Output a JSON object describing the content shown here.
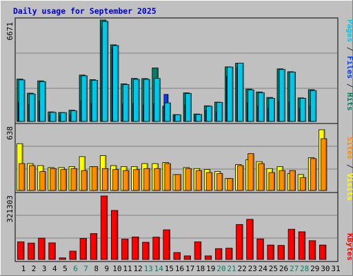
{
  "chart_data": [
    {
      "type": "bar",
      "title": "Daily usage for September 2025",
      "ylabel_parts": [
        {
          "text": "Pages",
          "color": "#00c8e8"
        },
        {
          "text": " / ",
          "color": "#333333"
        },
        {
          "text": "Files",
          "color": "#0040ff"
        },
        {
          "text": " / ",
          "color": "#333333"
        },
        {
          "text": "Hits",
          "color": "#008060"
        }
      ],
      "ymax_label": "6671",
      "ylim": [
        0,
        6671
      ],
      "categories": [
        "1",
        "2",
        "3",
        "4",
        "5",
        "6",
        "7",
        "8",
        "9",
        "10",
        "11",
        "12",
        "13",
        "14",
        "15",
        "16",
        "17",
        "18",
        "19",
        "20",
        "21",
        "22",
        "23",
        "24",
        "25",
        "26",
        "27",
        "28",
        "29",
        "30",
        "31"
      ],
      "weekend_days": [
        "6",
        "7",
        "13",
        "14",
        "20",
        "21",
        "27",
        "28"
      ],
      "series": [
        {
          "name": "Hits",
          "color": "#00806a",
          "values": [
            2790,
            1860,
            2670,
            630,
            590,
            740,
            3050,
            2750,
            6671,
            5040,
            2470,
            2830,
            2820,
            3520,
            1000,
            450,
            1880,
            490,
            1030,
            1270,
            3590,
            3830,
            2130,
            1940,
            1580,
            3460,
            3270,
            1550,
            2090,
            0,
            0
          ]
        },
        {
          "name": "Files",
          "color": "#0040ff",
          "values": [
            1260,
            1110,
            1340,
            420,
            370,
            440,
            1360,
            1170,
            6160,
            4860,
            1160,
            1190,
            1080,
            1180,
            1780,
            420,
            1080,
            330,
            730,
            640,
            2980,
            3560,
            1220,
            1020,
            870,
            1340,
            1290,
            860,
            1040,
            0,
            0
          ]
        },
        {
          "name": "Pages",
          "color": "#00c8e8",
          "values": [
            2730,
            1810,
            2620,
            600,
            580,
            700,
            3000,
            2710,
            6580,
            4990,
            2430,
            2770,
            2770,
            2830,
            1220,
            440,
            1840,
            460,
            1000,
            1250,
            3580,
            3830,
            2080,
            1890,
            1520,
            3420,
            3240,
            1520,
            2030,
            0,
            0
          ]
        }
      ]
    },
    {
      "type": "bar",
      "ylabel_parts": [
        {
          "text": "Sites",
          "color": "#ff8c00"
        },
        {
          "text": " / ",
          "color": "#333333"
        },
        {
          "text": "Visits",
          "color": "#ffff00"
        }
      ],
      "ymax_label": "638",
      "ylim": [
        0,
        638
      ],
      "categories": [
        "1",
        "2",
        "3",
        "4",
        "5",
        "6",
        "7",
        "8",
        "9",
        "10",
        "11",
        "12",
        "13",
        "14",
        "15",
        "16",
        "17",
        "18",
        "19",
        "20",
        "21",
        "22",
        "23",
        "24",
        "25",
        "26",
        "27",
        "28",
        "29",
        "30",
        "31"
      ],
      "series": [
        {
          "name": "Visits",
          "color": "#ffff00",
          "values": [
            470,
            270,
            250,
            230,
            230,
            240,
            340,
            240,
            350,
            250,
            240,
            240,
            270,
            270,
            280,
            160,
            230,
            220,
            210,
            190,
            120,
            260,
            310,
            290,
            220,
            240,
            170,
            160,
            330,
            610,
            0
          ]
        },
        {
          "name": "Sites",
          "color": "#ff8c00",
          "values": [
            270,
            250,
            190,
            220,
            210,
            220,
            200,
            240,
            220,
            210,
            200,
            210,
            220,
            220,
            270,
            160,
            220,
            200,
            180,
            170,
            120,
            250,
            370,
            270,
            180,
            200,
            200,
            130,
            320,
            520,
            0
          ]
        }
      ]
    },
    {
      "type": "bar",
      "ylabel_parts": [
        {
          "text": "KBytes",
          "color": "#ff0000"
        }
      ],
      "ymax_label": "321303",
      "ylim": [
        0,
        321303
      ],
      "categories": [
        "1",
        "2",
        "3",
        "4",
        "5",
        "6",
        "7",
        "8",
        "9",
        "10",
        "11",
        "12",
        "13",
        "14",
        "15",
        "16",
        "17",
        "18",
        "19",
        "20",
        "21",
        "22",
        "23",
        "24",
        "25",
        "26",
        "27",
        "28",
        "29",
        "30",
        "31"
      ],
      "series": [
        {
          "name": "KBytes",
          "color": "#ff0000",
          "values": [
            89000,
            83000,
            108000,
            84000,
            8000,
            42000,
            106000,
            131000,
            321303,
            248000,
            103000,
            114000,
            87000,
            113000,
            150000,
            35000,
            18000,
            89000,
            18000,
            55000,
            57000,
            177000,
            203000,
            104000,
            73000,
            71000,
            153000,
            140000,
            95000,
            73000,
            0
          ]
        }
      ]
    }
  ]
}
